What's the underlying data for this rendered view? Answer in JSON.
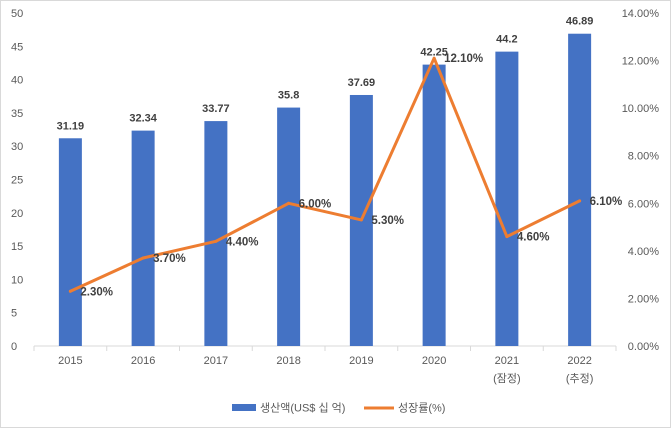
{
  "chart_data": {
    "type": "bar",
    "categories": [
      "2015",
      "2016",
      "2017",
      "2018",
      "2019",
      "2020",
      "2021",
      "2022"
    ],
    "category_sublabels": [
      "",
      "",
      "",
      "",
      "",
      "",
      "(잠정)",
      "(추정)"
    ],
    "series": [
      {
        "name": "생산액(US$ 십 억)",
        "type": "bar",
        "axis": "left",
        "color": "#4472c4",
        "values": [
          31.19,
          32.34,
          33.77,
          35.8,
          37.69,
          42.25,
          44.2,
          46.89
        ],
        "labels": [
          "31.19",
          "32.34",
          "33.77",
          "35.8",
          "37.69",
          "42.25",
          "44.2",
          "46.89"
        ]
      },
      {
        "name": "성장률(%)",
        "type": "line",
        "axis": "right",
        "color": "#ed7d31",
        "values": [
          2.3,
          3.7,
          4.4,
          6.0,
          5.3,
          12.1,
          4.6,
          6.1
        ],
        "labels": [
          "2.30%",
          "3.70%",
          "4.40%",
          "6.00%",
          "5.30%",
          "12.10%",
          "4.60%",
          "6.10%"
        ]
      }
    ],
    "y_left": {
      "range": [
        0,
        50
      ],
      "ticks": [
        "0",
        "5",
        "10",
        "15",
        "20",
        "25",
        "30",
        "35",
        "40",
        "45",
        "50"
      ]
    },
    "y_right": {
      "range": [
        0,
        14
      ],
      "ticks": [
        "0.00%",
        "2.00%",
        "4.00%",
        "6.00%",
        "8.00%",
        "10.00%",
        "12.00%",
        "14.00%"
      ]
    },
    "grid": false,
    "legend_position": "bottom"
  }
}
